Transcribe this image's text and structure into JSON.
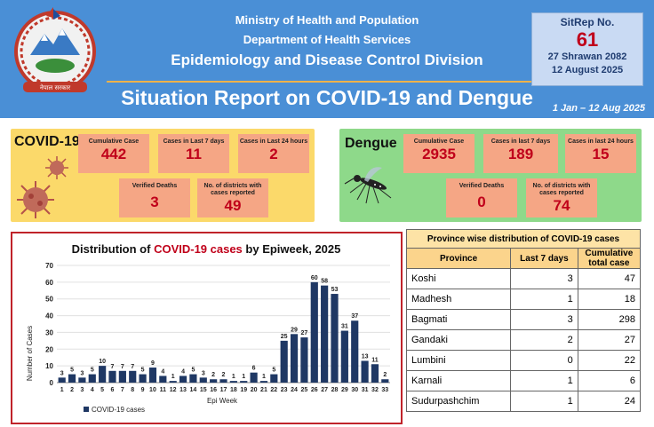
{
  "header": {
    "ministry": "Ministry of Health and Population",
    "department": "Department of Health Services",
    "division": "Epidemiology and Disease Control Division",
    "title": "Situation Report on COVID-19 and Dengue",
    "date_range": "1 Jan – 12 Aug 2025",
    "emblem_icon": "nepal-emblem-icon",
    "emblem_text": "नेपाल सरकार"
  },
  "sitrep": {
    "label": "SitRep No.",
    "number": "61",
    "date_np": "27 Shrawan 2082",
    "date_en": "12 August 2025"
  },
  "covid": {
    "title": "COVID-19",
    "icon": "virus-icon",
    "cumulative_label": "Cumulative Case",
    "cumulative": "442",
    "last7_label": "Cases in Last 7 days",
    "last7": "11",
    "last24_label": "Cases in Last 24 hours",
    "last24": "2",
    "deaths_label": "Verified Deaths",
    "deaths": "3",
    "districts_label": "No. of districts with cases reported",
    "districts": "49"
  },
  "dengue": {
    "title": "Dengue",
    "icon": "mosquito-icon",
    "cumulative_label": "Cumulative Case",
    "cumulative": "2935",
    "last7_label": "Cases in last 7 days",
    "last7": "189",
    "last24_label": "Cases in last 24 hours",
    "last24": "15",
    "deaths_label": "Verified Deaths",
    "deaths": "0",
    "districts_label": "No. of districts with cases reported",
    "districts": "74"
  },
  "chart_data": {
    "type": "bar",
    "title_prefix": "Distribution of ",
    "title_highlight": "COVID-19 cases",
    "title_suffix": " by Epiweek, 2025",
    "xlabel": "Epi Week",
    "ylabel": "Number of Cases",
    "ylim": [
      0,
      70
    ],
    "yticks": [
      0,
      10,
      20,
      30,
      40,
      50,
      60,
      70
    ],
    "categories": [
      "1",
      "2",
      "3",
      "4",
      "5",
      "6",
      "7",
      "8",
      "9",
      "10",
      "11",
      "12",
      "13",
      "14",
      "15",
      "16",
      "17",
      "18",
      "19",
      "20",
      "21",
      "22",
      "23",
      "24",
      "25",
      "26",
      "27",
      "28",
      "29",
      "30",
      "31",
      "32",
      "33"
    ],
    "series": [
      {
        "name": "COVID-19 cases",
        "color": "#1f3864",
        "values": [
          3,
          5,
          3,
          5,
          10,
          7,
          7,
          7,
          5,
          9,
          4,
          1,
          4,
          5,
          3,
          2,
          2,
          1,
          1,
          6,
          1,
          5,
          25,
          29,
          27,
          60,
          58,
          53,
          31,
          37,
          13,
          11,
          2
        ]
      }
    ],
    "legend": "bottom-left",
    "grid": true
  },
  "province_table": {
    "caption": "Province wise distribution of COVID-19 cases",
    "headers": [
      "Province",
      "Last 7 days",
      "Cumulative total case"
    ],
    "rows": [
      [
        "Koshi",
        "3",
        "47"
      ],
      [
        "Madhesh",
        "1",
        "18"
      ],
      [
        "Bagmati",
        "3",
        "298"
      ],
      [
        "Gandaki",
        "2",
        "27"
      ],
      [
        "Lumbini",
        "0",
        "22"
      ],
      [
        "Karnali",
        "1",
        "6"
      ],
      [
        "Sudurpashchim",
        "1",
        "24"
      ]
    ]
  },
  "colors": {
    "header_bg": "#4a8fd6",
    "covid_panel": "#fbd96a",
    "dengue_panel": "#8ed98a",
    "card": "#f5a685",
    "value": "#c0001a",
    "bar": "#1f3864"
  }
}
